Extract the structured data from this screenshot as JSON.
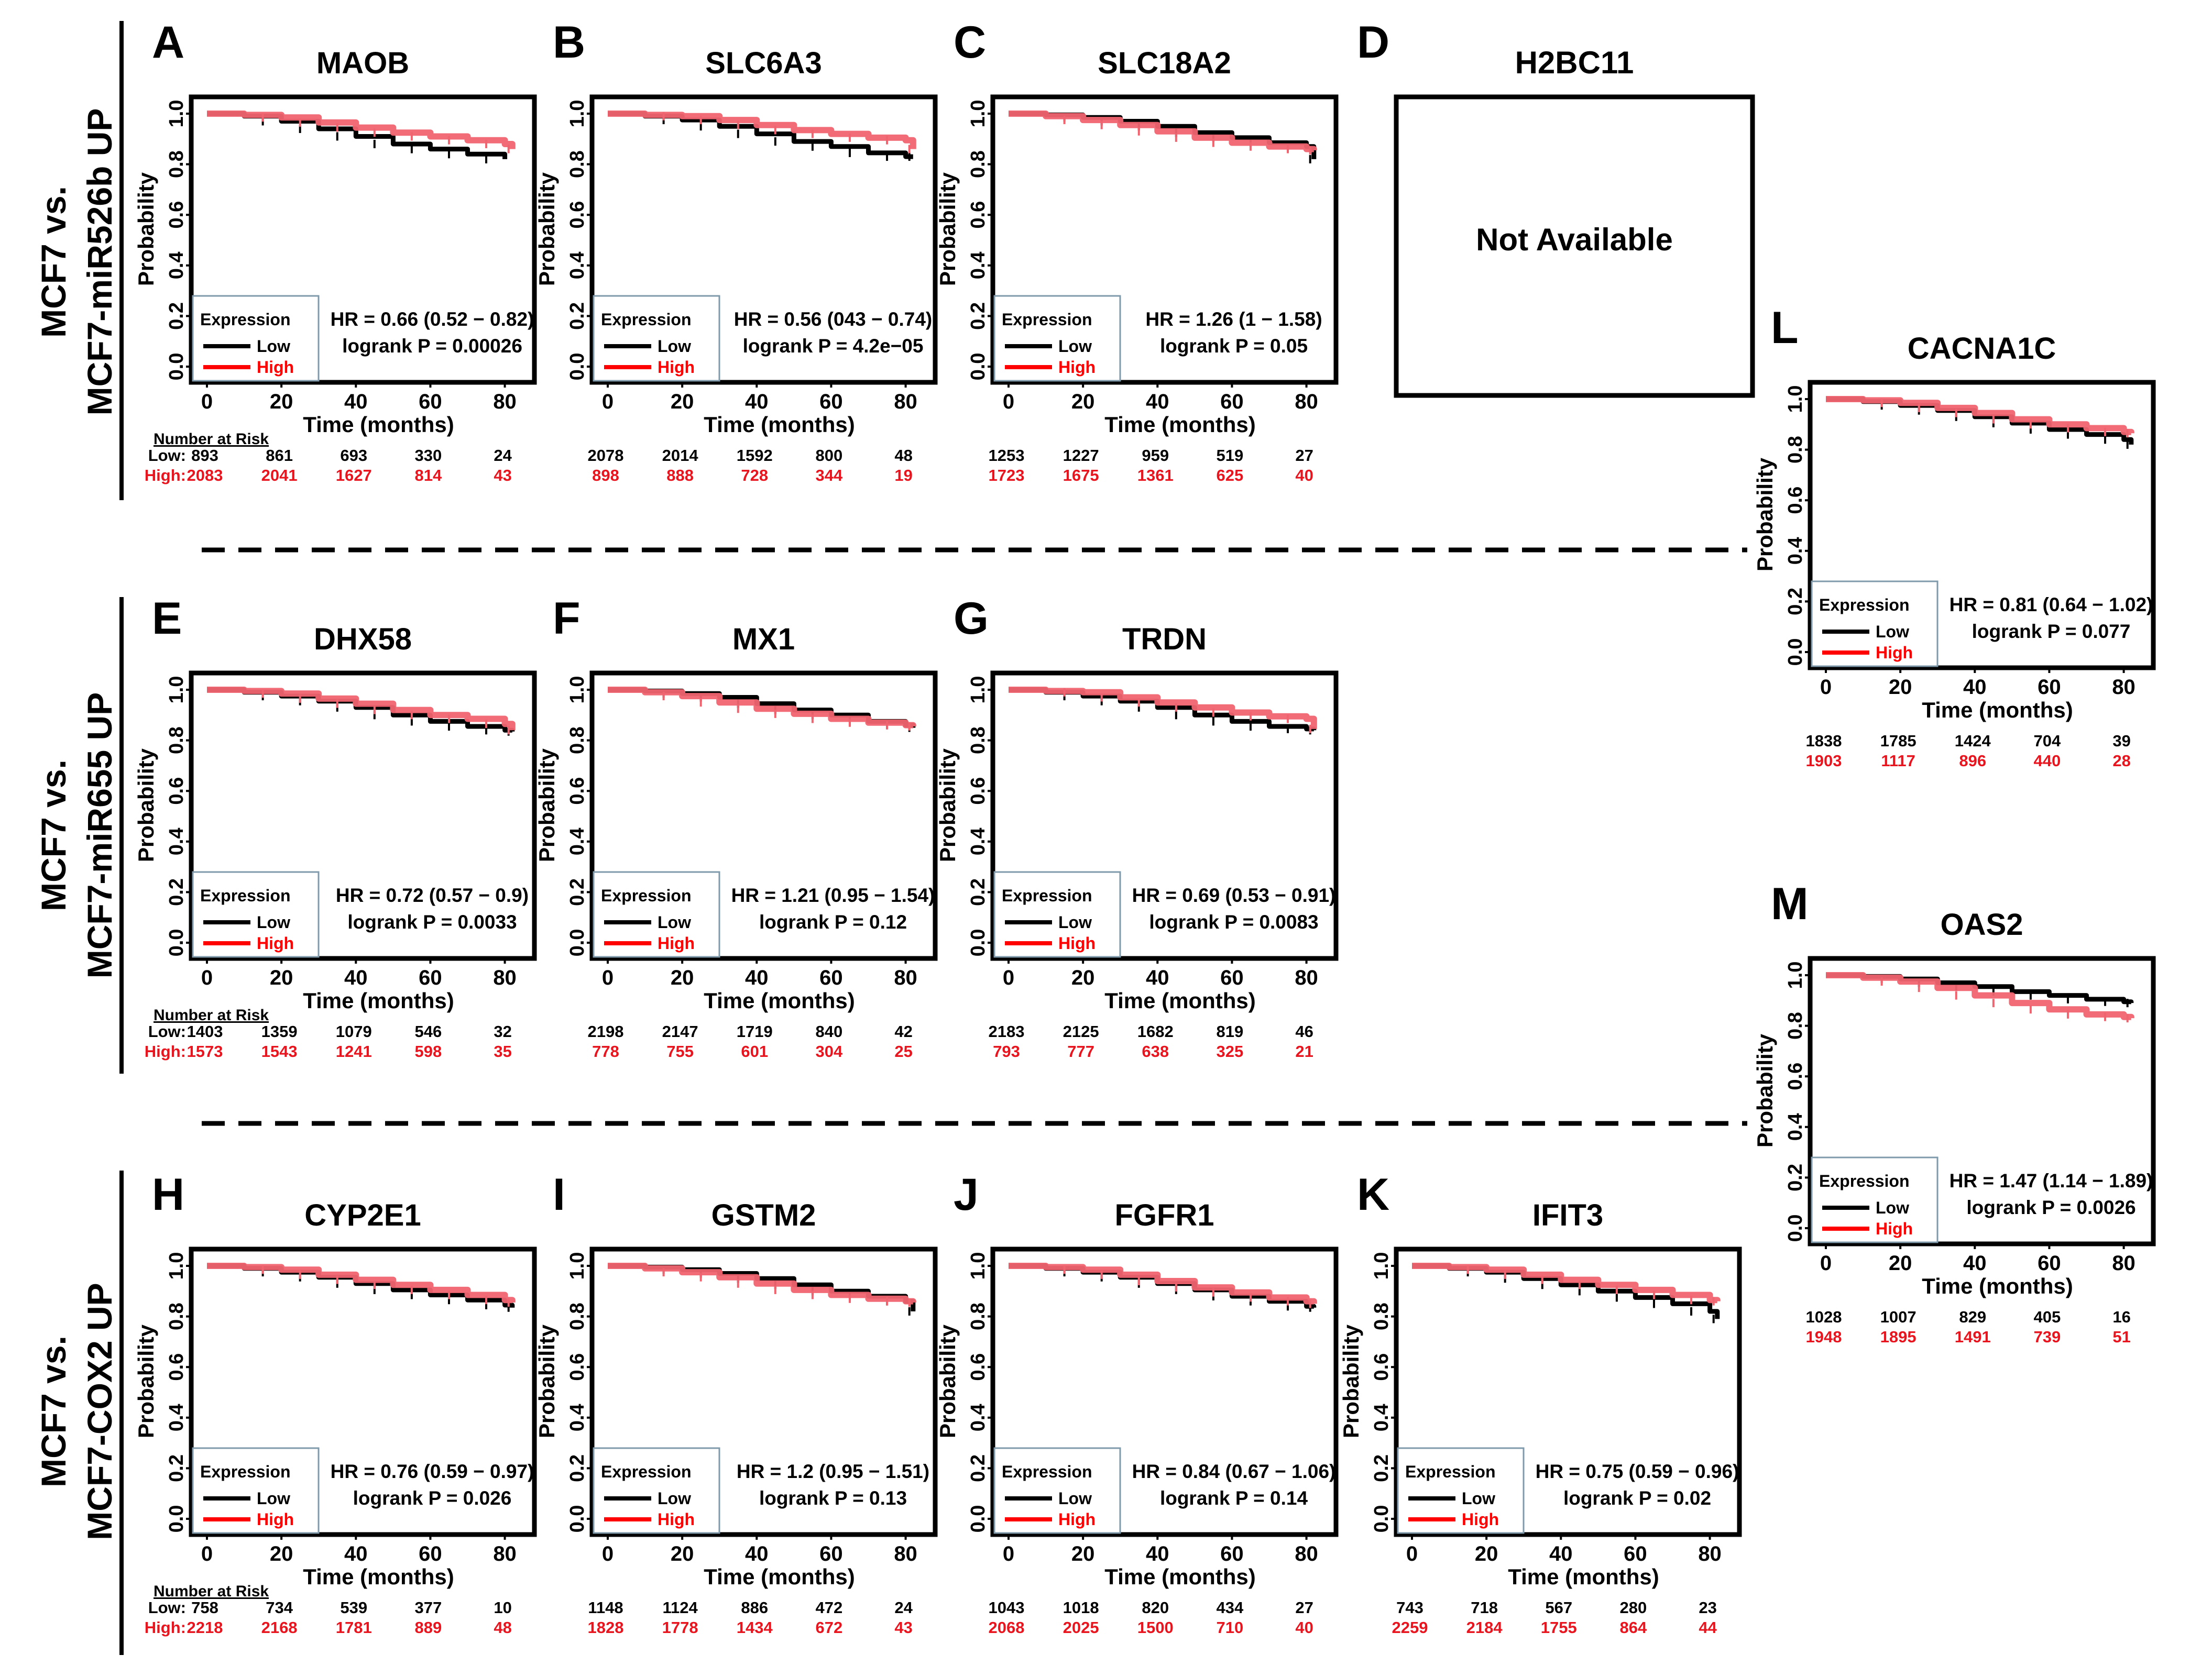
{
  "colors": {
    "low": "#000000",
    "high": "#f06470",
    "high_text": "#e8141e",
    "legend_high": "#ff0000",
    "legend_box": "#7f9aab",
    "frame": "#000000"
  },
  "common": {
    "ylabel": "Probability",
    "xlabel": "Time (months)",
    "yticks": [
      "0.0",
      "0.2",
      "0.4",
      "0.6",
      "0.8",
      "1.0"
    ],
    "xticks": [
      "0",
      "20",
      "40",
      "60",
      "80"
    ],
    "legend_title": "Expression",
    "legend_low": "Low",
    "legend_high": "High",
    "number_at_risk": "Number at Risk",
    "low_prefix": "Low:",
    "high_prefix": "High:"
  },
  "groups": [
    {
      "line1": "MCF7 vs.",
      "line2": "MCF7-miR526b UP"
    },
    {
      "line1": "MCF7 vs.",
      "line2": "MCF7-miR655 UP"
    },
    {
      "line1": "MCF7 vs.",
      "line2": "MCF7-COX2 UP"
    }
  ],
  "unavailable": {
    "letter": "D",
    "gene": "H2BC11",
    "text": "Not Available"
  },
  "chart_data": [
    {
      "type": "line",
      "letter": "A",
      "title": "MAOB",
      "hr": "HR = 0.66 (0.52 − 0.82)",
      "p": "logrank P = 0.00026",
      "xlabel": "Time (months)",
      "ylabel": "Probability",
      "xlim": [
        0,
        84
      ],
      "ylim": [
        0,
        1
      ],
      "series": [
        {
          "name": "Low",
          "x": [
            0,
            10,
            20,
            30,
            40,
            50,
            60,
            70,
            80
          ],
          "y": [
            1.0,
            0.99,
            0.97,
            0.94,
            0.91,
            0.88,
            0.86,
            0.84,
            0.82
          ]
        },
        {
          "name": "High",
          "x": [
            0,
            10,
            20,
            30,
            40,
            50,
            60,
            70,
            80,
            82
          ],
          "y": [
            1.0,
            0.995,
            0.985,
            0.965,
            0.945,
            0.925,
            0.91,
            0.895,
            0.88,
            0.86
          ]
        }
      ],
      "risk_low": [
        "893",
        "861",
        "693",
        "330",
        "24"
      ],
      "risk_high": [
        "2083",
        "2041",
        "1627",
        "814",
        "43"
      ]
    },
    {
      "type": "line",
      "letter": "B",
      "title": "SLC6A3",
      "hr": "HR = 0.56 (043 − 0.74)",
      "p": "logrank P = 4.2e−05",
      "xlabel": "Time (months)",
      "ylabel": "Probability",
      "xlim": [
        0,
        84
      ],
      "ylim": [
        0,
        1
      ],
      "series": [
        {
          "name": "Low",
          "x": [
            0,
            10,
            20,
            30,
            40,
            50,
            60,
            70,
            80,
            82
          ],
          "y": [
            1.0,
            0.99,
            0.975,
            0.95,
            0.92,
            0.89,
            0.87,
            0.845,
            0.83,
            0.83
          ]
        },
        {
          "name": "High",
          "x": [
            0,
            10,
            20,
            30,
            40,
            50,
            60,
            70,
            80,
            82
          ],
          "y": [
            1.0,
            0.995,
            0.99,
            0.975,
            0.955,
            0.935,
            0.92,
            0.905,
            0.895,
            0.86
          ]
        }
      ],
      "risk_low": [
        "2078",
        "2014",
        "1592",
        "800",
        "48"
      ],
      "risk_high": [
        "898",
        "888",
        "728",
        "344",
        "19"
      ]
    },
    {
      "type": "line",
      "letter": "C",
      "title": "SLC18A2",
      "hr": "HR = 1.26 (1 − 1.58)",
      "p": "logrank P = 0.05",
      "xlabel": "Time (months)",
      "ylabel": "Probability",
      "xlim": [
        0,
        84
      ],
      "ylim": [
        0,
        1
      ],
      "series": [
        {
          "name": "Low",
          "x": [
            0,
            10,
            20,
            30,
            40,
            50,
            60,
            70,
            80,
            82
          ],
          "y": [
            1.0,
            0.995,
            0.985,
            0.97,
            0.95,
            0.925,
            0.905,
            0.885,
            0.87,
            0.82
          ]
        },
        {
          "name": "High",
          "x": [
            0,
            10,
            20,
            30,
            40,
            50,
            60,
            70,
            80,
            82
          ],
          "y": [
            1.0,
            0.99,
            0.975,
            0.955,
            0.93,
            0.905,
            0.885,
            0.87,
            0.86,
            0.855
          ]
        }
      ],
      "risk_low": [
        "1253",
        "1227",
        "959",
        "519",
        "27"
      ],
      "risk_high": [
        "1723",
        "1675",
        "1361",
        "625",
        "40"
      ]
    },
    {
      "type": "line",
      "letter": "E",
      "title": "DHX58",
      "hr": "HR = 0.72 (0.57 − 0.9)",
      "p": "logrank P = 0.0033",
      "xlabel": "Time (months)",
      "ylabel": "Probability",
      "xlim": [
        0,
        84
      ],
      "ylim": [
        0,
        1
      ],
      "series": [
        {
          "name": "Low",
          "x": [
            0,
            10,
            20,
            30,
            40,
            50,
            60,
            70,
            80,
            82
          ],
          "y": [
            1.0,
            0.99,
            0.975,
            0.955,
            0.93,
            0.9,
            0.875,
            0.855,
            0.84,
            0.835
          ]
        },
        {
          "name": "High",
          "x": [
            0,
            10,
            20,
            30,
            40,
            50,
            60,
            70,
            80,
            82
          ],
          "y": [
            1.0,
            0.995,
            0.985,
            0.965,
            0.945,
            0.92,
            0.9,
            0.885,
            0.865,
            0.84
          ]
        }
      ],
      "risk_low": [
        "1403",
        "1359",
        "1079",
        "546",
        "32"
      ],
      "risk_high": [
        "1573",
        "1543",
        "1241",
        "598",
        "35"
      ]
    },
    {
      "type": "line",
      "letter": "F",
      "title": "MX1",
      "hr": "HR = 1.21 (0.95 − 1.54)",
      "p": "logrank P = 0.12",
      "xlabel": "Time (months)",
      "ylabel": "Probability",
      "xlim": [
        0,
        84
      ],
      "ylim": [
        0,
        1
      ],
      "series": [
        {
          "name": "Low",
          "x": [
            0,
            10,
            20,
            30,
            40,
            50,
            60,
            70,
            80,
            82
          ],
          "y": [
            1.0,
            0.995,
            0.985,
            0.97,
            0.945,
            0.92,
            0.9,
            0.875,
            0.86,
            0.85
          ]
        },
        {
          "name": "High",
          "x": [
            0,
            10,
            20,
            30,
            40,
            50,
            60,
            70,
            80,
            82
          ],
          "y": [
            1.0,
            0.99,
            0.975,
            0.95,
            0.925,
            0.905,
            0.885,
            0.87,
            0.86,
            0.855
          ]
        }
      ],
      "risk_low": [
        "2198",
        "2147",
        "1719",
        "840",
        "42"
      ],
      "risk_high": [
        "778",
        "755",
        "601",
        "304",
        "25"
      ]
    },
    {
      "type": "line",
      "letter": "G",
      "title": "TRDN",
      "hr": "HR = 0.69 (0.53 − 0.91)",
      "p": "logrank P = 0.0083",
      "xlabel": "Time (months)",
      "ylabel": "Probability",
      "xlim": [
        0,
        84
      ],
      "ylim": [
        0,
        1
      ],
      "series": [
        {
          "name": "Low",
          "x": [
            0,
            10,
            20,
            30,
            40,
            50,
            60,
            70,
            80,
            82
          ],
          "y": [
            1.0,
            0.99,
            0.975,
            0.955,
            0.93,
            0.9,
            0.875,
            0.855,
            0.845,
            0.84
          ]
        },
        {
          "name": "High",
          "x": [
            0,
            10,
            20,
            30,
            40,
            50,
            60,
            70,
            80,
            82
          ],
          "y": [
            1.0,
            0.995,
            0.99,
            0.97,
            0.95,
            0.93,
            0.91,
            0.895,
            0.885,
            0.845
          ]
        }
      ],
      "risk_low": [
        "2183",
        "2125",
        "1682",
        "819",
        "46"
      ],
      "risk_high": [
        "793",
        "777",
        "638",
        "325",
        "21"
      ]
    },
    {
      "type": "line",
      "letter": "H",
      "title": "CYP2E1",
      "hr": "HR = 0.76 (0.59 − 0.97)",
      "p": "logrank P = 0.026",
      "xlabel": "Time (months)",
      "ylabel": "Probability",
      "xlim": [
        0,
        84
      ],
      "ylim": [
        0,
        1
      ],
      "series": [
        {
          "name": "Low",
          "x": [
            0,
            10,
            20,
            30,
            40,
            50,
            60,
            70,
            80,
            82
          ],
          "y": [
            1.0,
            0.99,
            0.975,
            0.955,
            0.93,
            0.905,
            0.885,
            0.865,
            0.845,
            0.835
          ]
        },
        {
          "name": "High",
          "x": [
            0,
            10,
            20,
            30,
            40,
            50,
            60,
            70,
            80,
            82
          ],
          "y": [
            1.0,
            0.995,
            0.985,
            0.965,
            0.945,
            0.925,
            0.905,
            0.885,
            0.865,
            0.855
          ]
        }
      ],
      "risk_low": [
        "758",
        "734",
        "539",
        "377",
        "10"
      ],
      "risk_high": [
        "2218",
        "2168",
        "1781",
        "889",
        "48"
      ]
    },
    {
      "type": "line",
      "letter": "I",
      "title": "GSTM2",
      "hr": "HR = 1.2 (0.95 − 1.51)",
      "p": "logrank P = 0.13",
      "xlabel": "Time (months)",
      "ylabel": "Probability",
      "xlim": [
        0,
        84
      ],
      "ylim": [
        0,
        1
      ],
      "series": [
        {
          "name": "Low",
          "x": [
            0,
            10,
            20,
            30,
            40,
            50,
            60,
            70,
            80,
            82
          ],
          "y": [
            1.0,
            0.995,
            0.985,
            0.97,
            0.95,
            0.925,
            0.9,
            0.88,
            0.86,
            0.82
          ]
        },
        {
          "name": "High",
          "x": [
            0,
            10,
            20,
            30,
            40,
            50,
            60,
            70,
            80,
            82
          ],
          "y": [
            1.0,
            0.99,
            0.975,
            0.955,
            0.93,
            0.905,
            0.885,
            0.87,
            0.86,
            0.855
          ]
        }
      ],
      "risk_low": [
        "1148",
        "1124",
        "886",
        "472",
        "24"
      ],
      "risk_high": [
        "1828",
        "1778",
        "1434",
        "672",
        "43"
      ]
    },
    {
      "type": "line",
      "letter": "J",
      "title": "FGFR1",
      "hr": "HR = 0.84 (0.67 − 1.06)",
      "p": "logrank P = 0.14",
      "xlabel": "Time (months)",
      "ylabel": "Probability",
      "xlim": [
        0,
        84
      ],
      "ylim": [
        0,
        1
      ],
      "series": [
        {
          "name": "Low",
          "x": [
            0,
            10,
            20,
            30,
            40,
            50,
            60,
            70,
            80,
            82
          ],
          "y": [
            1.0,
            0.99,
            0.975,
            0.955,
            0.93,
            0.905,
            0.88,
            0.86,
            0.84,
            0.835
          ]
        },
        {
          "name": "High",
          "x": [
            0,
            10,
            20,
            30,
            40,
            50,
            60,
            70,
            80,
            82
          ],
          "y": [
            1.0,
            0.995,
            0.985,
            0.965,
            0.94,
            0.915,
            0.895,
            0.875,
            0.86,
            0.85
          ]
        }
      ],
      "risk_low": [
        "1043",
        "1018",
        "820",
        "434",
        "27"
      ],
      "risk_high": [
        "2068",
        "2025",
        "1500",
        "710",
        "40"
      ]
    },
    {
      "type": "line",
      "letter": "K",
      "title": "IFIT3",
      "hr": "HR = 0.75 (0.59 − 0.96)",
      "p": "logrank P = 0.02",
      "xlabel": "Time (months)",
      "ylabel": "Probability",
      "xlim": [
        0,
        84
      ],
      "ylim": [
        0,
        1
      ],
      "series": [
        {
          "name": "Low",
          "x": [
            0,
            10,
            20,
            30,
            40,
            50,
            60,
            70,
            80,
            82
          ],
          "y": [
            1.0,
            0.99,
            0.975,
            0.95,
            0.925,
            0.9,
            0.875,
            0.85,
            0.82,
            0.79
          ]
        },
        {
          "name": "High",
          "x": [
            0,
            10,
            20,
            30,
            40,
            50,
            60,
            70,
            80,
            82
          ],
          "y": [
            1.0,
            0.995,
            0.985,
            0.965,
            0.945,
            0.925,
            0.905,
            0.885,
            0.865,
            0.86
          ]
        }
      ],
      "risk_low": [
        "743",
        "718",
        "567",
        "280",
        "23"
      ],
      "risk_high": [
        "2259",
        "2184",
        "1755",
        "864",
        "44"
      ]
    },
    {
      "type": "line",
      "letter": "L",
      "title": "CACNA1C",
      "hr": "HR = 0.81 (0.64 − 1.02)",
      "p": "logrank P = 0.077",
      "xlabel": "Time (months)",
      "ylabel": "Probability",
      "xlim": [
        0,
        84
      ],
      "ylim": [
        0,
        1
      ],
      "series": [
        {
          "name": "Low",
          "x": [
            0,
            10,
            20,
            30,
            40,
            50,
            60,
            70,
            80,
            82
          ],
          "y": [
            1.0,
            0.99,
            0.975,
            0.955,
            0.93,
            0.905,
            0.88,
            0.86,
            0.84,
            0.82
          ]
        },
        {
          "name": "High",
          "x": [
            0,
            10,
            20,
            30,
            40,
            50,
            60,
            70,
            80,
            82
          ],
          "y": [
            1.0,
            0.995,
            0.985,
            0.965,
            0.945,
            0.92,
            0.9,
            0.885,
            0.87,
            0.865
          ]
        }
      ],
      "risk_low": [
        "1838",
        "1785",
        "1424",
        "704",
        "39"
      ],
      "risk_high": [
        "1903",
        "1117",
        "896",
        "440",
        "28"
      ]
    },
    {
      "type": "line",
      "letter": "M",
      "title": "OAS2",
      "hr": "HR = 1.47 (1.14 − 1.89)",
      "p": "logrank P = 0.0026",
      "xlabel": "Time (months)",
      "ylabel": "Probability",
      "xlim": [
        0,
        84
      ],
      "ylim": [
        0,
        1
      ],
      "series": [
        {
          "name": "Low",
          "x": [
            0,
            10,
            20,
            30,
            40,
            50,
            60,
            70,
            80,
            82
          ],
          "y": [
            1.0,
            0.995,
            0.985,
            0.97,
            0.955,
            0.935,
            0.92,
            0.905,
            0.895,
            0.89
          ]
        },
        {
          "name": "High",
          "x": [
            0,
            10,
            20,
            30,
            40,
            50,
            60,
            70,
            80,
            82
          ],
          "y": [
            1.0,
            0.99,
            0.975,
            0.95,
            0.92,
            0.89,
            0.865,
            0.845,
            0.835,
            0.83
          ]
        }
      ],
      "risk_low": [
        "1028",
        "1007",
        "829",
        "405",
        "16"
      ],
      "risk_high": [
        "1948",
        "1895",
        "1491",
        "739",
        "51"
      ]
    }
  ]
}
